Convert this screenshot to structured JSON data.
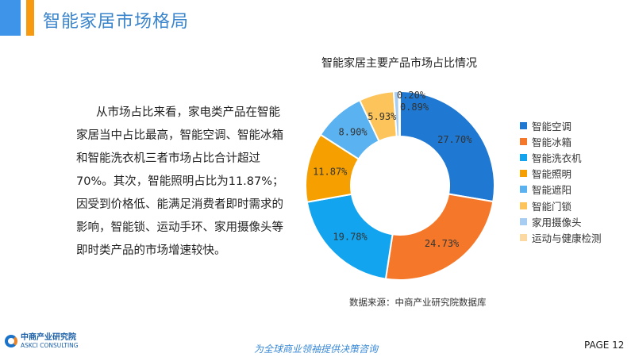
{
  "header": {
    "title": "智能家居市场格局"
  },
  "body_text": "从市场占比来看，家电类产品在智能家居当中占比最高，智能空调、智能冰箱和智能洗衣机三者市场占比合计超过 70%。其次，智能照明占比为11.87%；因受到价格低、能满足消费者即时需求的影响，智能锁、运动手环、家用摄像头等即时类产品的市场增速较快。",
  "chart_data": {
    "type": "pie",
    "donut": true,
    "title": "智能家居主要产品市场占比情况",
    "categories": [
      "智能空调",
      "智能冰箱",
      "智能洗衣机",
      "智能照明",
      "智能遮阳",
      "智能门锁",
      "家用摄像头",
      "运动与健康检测"
    ],
    "values": [
      27.7,
      24.73,
      19.78,
      11.87,
      8.9,
      5.93,
      0.89,
      0.2
    ],
    "labels": [
      "27.70%",
      "24.73%",
      "19.78%",
      "11.87%",
      "8.90%",
      "5.93%",
      "0.89%",
      "0.20%"
    ],
    "colors": [
      "#1f78d1",
      "#f5782a",
      "#12a4ee",
      "#f5a000",
      "#5ab2f0",
      "#fcc45a",
      "#a7cdf2",
      "#fbd9a0"
    ],
    "legend_position": "right"
  },
  "source": "数据来源：中商产业研究院数据库",
  "footer": {
    "logo_cn": "中商产业研究院",
    "logo_en": "ASKCI CONSULTING",
    "slogan": "为全球商业领袖提供决策咨询",
    "page": "PAGE  12"
  }
}
